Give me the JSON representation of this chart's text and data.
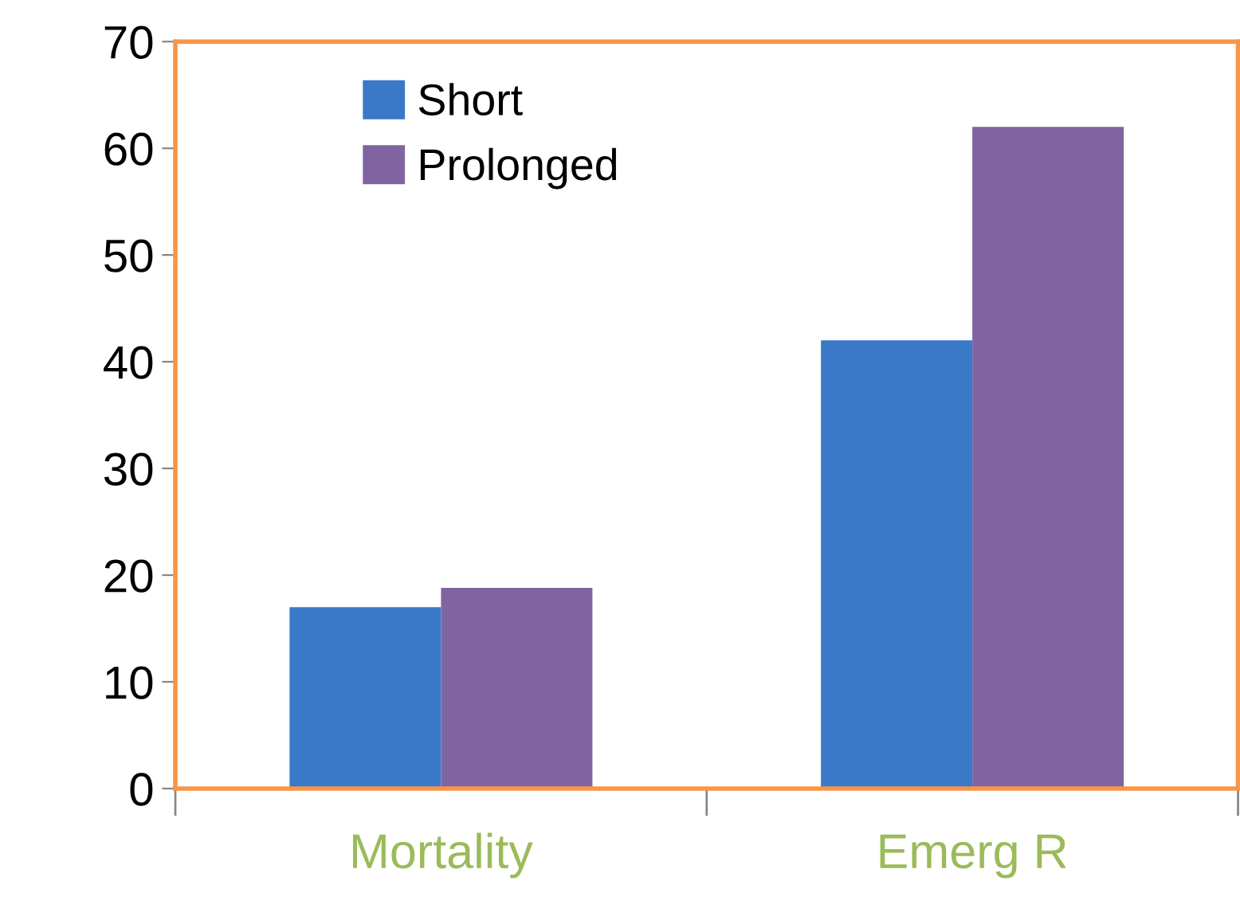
{
  "chart_data": {
    "type": "bar",
    "categories": [
      "Mortality",
      "Emerg R"
    ],
    "series": [
      {
        "name": "Short",
        "color": "#3a78c8",
        "values": [
          17,
          42
        ]
      },
      {
        "name": "Prolonged",
        "color": "#8064a2",
        "values": [
          18.8,
          62
        ]
      }
    ],
    "ylim": [
      0,
      70
    ],
    "yticks": [
      0,
      10,
      20,
      30,
      40,
      50,
      60,
      70
    ],
    "grid": false,
    "legend": "top left"
  }
}
